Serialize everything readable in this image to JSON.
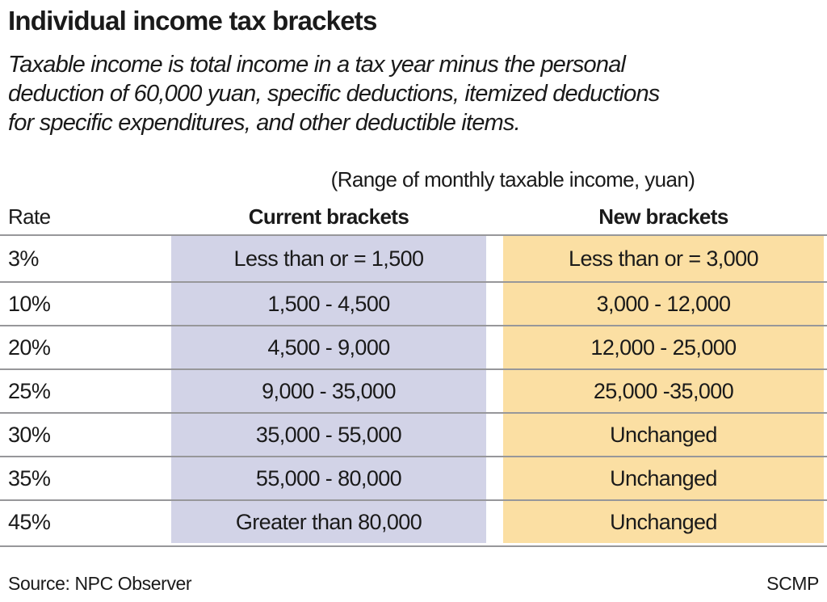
{
  "title": "Individual income tax brackets",
  "subtitle_lines": [
    "Taxable income is total income in a tax year minus the personal",
    "deduction of 60,000 yuan, specific deductions, itemized deductions",
    "for specific expenditures, and other deductible items."
  ],
  "range_note": "(Range of monthly taxable income, yuan)",
  "columns": {
    "rate": "Rate",
    "current": "Current brackets",
    "new": "New brackets"
  },
  "rows": [
    {
      "rate": "3%",
      "current": "Less than or = 1,500",
      "new": "Less than or = 3,000"
    },
    {
      "rate": "10%",
      "current": "1,500 - 4,500",
      "new": "3,000 - 12,000"
    },
    {
      "rate": "20%",
      "current": "4,500 - 9,000",
      "new": "12,000 - 25,000"
    },
    {
      "rate": "25%",
      "current": "9,000 - 35,000",
      "new": "25,000 -35,000"
    },
    {
      "rate": "30%",
      "current": "35,000 - 55,000",
      "new": "Unchanged"
    },
    {
      "rate": "35%",
      "current": "55,000 - 80,000",
      "new": "Unchanged"
    },
    {
      "rate": "45%",
      "current": "Greater than 80,000",
      "new": "Unchanged"
    }
  ],
  "footer": {
    "source": "Source: NPC Observer",
    "credit": "SCMP"
  },
  "colors": {
    "current_column_bg": "#d2d3e7",
    "new_column_bg": "#fbdfa3",
    "divider": "#97979a",
    "text": "#1a1a1a"
  },
  "chart_data": {
    "type": "table",
    "title": "Individual income tax brackets",
    "subtitle": "Taxable income is total income in a tax year minus the personal deduction of 60,000 yuan, specific deductions, itemized deductions for specific expenditures, and other deductible items.",
    "units_note": "(Range of monthly taxable income, yuan)",
    "columns": [
      "Rate",
      "Current brackets",
      "New brackets"
    ],
    "rows": [
      [
        "3%",
        "Less than or = 1,500",
        "Less than or = 3,000"
      ],
      [
        "10%",
        "1,500 - 4,500",
        "3,000 - 12,000"
      ],
      [
        "20%",
        "4,500 - 9,000",
        "12,000 - 25,000"
      ],
      [
        "25%",
        "9,000 - 35,000",
        "25,000 -35,000"
      ],
      [
        "30%",
        "35,000 - 55,000",
        "Unchanged"
      ],
      [
        "35%",
        "55,000 - 80,000",
        "Unchanged"
      ],
      [
        "45%",
        "Greater than 80,000",
        "Unchanged"
      ]
    ],
    "source": "Source: NPC Observer",
    "credit": "SCMP",
    "layout": {
      "current_column_bg": "#d2d3e7",
      "new_column_bg": "#fbdfa3",
      "row_divider_color": "#97979a"
    }
  }
}
